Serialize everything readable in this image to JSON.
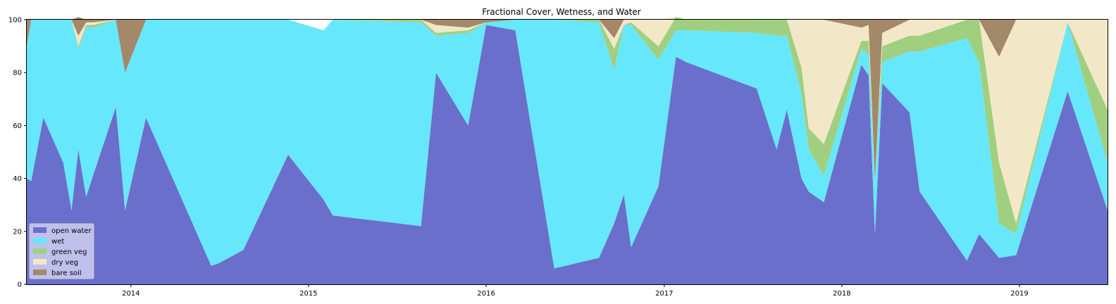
{
  "chart_data": {
    "type": "area",
    "stacked": true,
    "title": "Fractional Cover, Wetness, and Water",
    "xlabel": "",
    "ylabel": "",
    "ylim": [
      0,
      100
    ],
    "xlim": [
      "2013-06-01",
      "2019-07-01"
    ],
    "x_ticks": [
      "2014",
      "2015",
      "2016",
      "2017",
      "2018",
      "2019"
    ],
    "y_ticks": [
      0,
      20,
      40,
      60,
      80,
      100
    ],
    "grid": false,
    "legend_position": "lower-left",
    "x": [
      "2013-06-01",
      "2013-06-10",
      "2013-07-05",
      "2013-08-15",
      "2013-09-01",
      "2013-09-15",
      "2013-10-01",
      "2013-10-15",
      "2013-12-01",
      "2013-12-20",
      "2014-02-01",
      "2014-06-15",
      "2014-07-01",
      "2014-08-20",
      "2014-11-20",
      "2015-02-01",
      "2015-02-20",
      "2015-08-20",
      "2015-09-20",
      "2015-11-25",
      "2016-01-01",
      "2016-03-01",
      "2016-05-20",
      "2016-08-20",
      "2016-09-20",
      "2016-10-10",
      "2016-10-25",
      "2016-12-20",
      "2017-01-25",
      "2017-02-15",
      "2017-07-10",
      "2017-08-20",
      "2017-09-10",
      "2017-10-10",
      "2017-10-25",
      "2017-11-25",
      "2018-02-10",
      "2018-02-25",
      "2018-03-10",
      "2018-03-25",
      "2018-05-20",
      "2018-06-10",
      "2018-09-15",
      "2018-10-10",
      "2018-11-20",
      "2018-12-25",
      "2019-04-10",
      "2019-07-01"
    ],
    "series": [
      {
        "name": "open water",
        "color": "#6a6fcb",
        "values": [
          40,
          39,
          63,
          46,
          28,
          51,
          33,
          41,
          67,
          28,
          63,
          7,
          8,
          13,
          49,
          32,
          26,
          22,
          80,
          60,
          98,
          96,
          6,
          10,
          23,
          34,
          14,
          37,
          86,
          84,
          74,
          51,
          66,
          40,
          35,
          31,
          83,
          79,
          19,
          76,
          65,
          35,
          9,
          19,
          10,
          11,
          73,
          28
        ]
      },
      {
        "name": "wet",
        "color": "#67e7fc",
        "values": [
          50,
          61,
          37,
          54,
          72,
          38,
          64,
          56,
          33,
          52,
          37,
          93,
          92,
          87,
          51,
          64,
          74,
          77,
          14,
          35,
          1,
          4,
          94,
          89,
          58,
          64,
          84,
          48,
          10,
          12,
          21,
          43,
          28,
          32,
          16,
          10,
          6,
          8,
          20,
          8,
          23,
          53,
          84,
          65,
          13,
          8,
          26,
          18
        ]
      },
      {
        "name": "green veg",
        "color": "#a0cf80",
        "values": [
          0,
          0,
          0,
          0,
          0,
          1,
          1,
          1,
          0,
          0,
          0,
          0,
          0,
          0,
          0,
          0,
          0,
          1,
          1,
          1,
          0,
          0,
          0,
          1,
          8,
          0,
          1,
          5,
          5,
          4,
          5,
          6,
          6,
          10,
          8,
          12,
          3,
          5,
          0,
          6,
          6,
          6,
          7,
          16,
          23,
          4,
          0,
          20
        ]
      },
      {
        "name": "dry veg",
        "color": "#f2e8c8",
        "values": [
          0,
          0,
          0,
          0,
          0,
          4,
          1,
          1,
          0,
          0,
          0,
          0,
          0,
          0,
          0,
          0,
          0,
          0,
          3,
          1,
          0,
          0,
          0,
          0,
          4,
          2,
          1,
          10,
          0,
          0,
          0,
          0,
          0,
          18,
          41,
          47,
          5,
          6,
          0,
          5,
          6,
          6,
          0,
          0,
          40,
          77,
          1,
          34
        ]
      },
      {
        "name": "bare soil",
        "color": "#a38869",
        "values": [
          10,
          0,
          0,
          0,
          0,
          7,
          1,
          1,
          0,
          20,
          0,
          0,
          0,
          0,
          0,
          0,
          0,
          0,
          2,
          3,
          1,
          0,
          0,
          0,
          7,
          0,
          0,
          0,
          0,
          0,
          0,
          0,
          0,
          0,
          0,
          0,
          3,
          2,
          61,
          5,
          0,
          0,
          0,
          0,
          14,
          0,
          0,
          0
        ]
      }
    ]
  }
}
